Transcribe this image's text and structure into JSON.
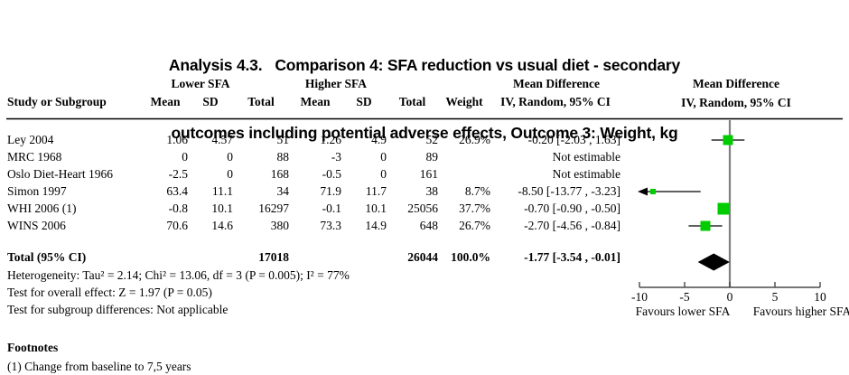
{
  "title": {
    "line1": "Analysis 4.3.   Comparison 4: SFA reduction vs usual diet - secondary",
    "line2": "outcomes including potential adverse effects, Outcome 3: Weight, kg"
  },
  "header": {
    "study": "Study or Subgroup",
    "group_lower": "Lower SFA",
    "group_higher": "Higher SFA",
    "mean": "Mean",
    "sd": "SD",
    "total": "Total",
    "weight": "Weight",
    "md_title_text": "Mean Difference",
    "md_title_graph": "Mean Difference",
    "md_subtitle_text": "IV, Random, 95% CI",
    "md_subtitle_graph": "IV, Random, 95% CI"
  },
  "rows": [
    {
      "study": "Ley 2004",
      "mean1": "1.06",
      "sd1": "4.57",
      "total1": "51",
      "mean2": "1.26",
      "sd2": "4.9",
      "total2": "52",
      "weight": "26.9%",
      "md": "-0.20 [-2.03 , 1.63]"
    },
    {
      "study": "MRC 1968",
      "mean1": "0",
      "sd1": "0",
      "total1": "88",
      "mean2": "-3",
      "sd2": "0",
      "total2": "89",
      "weight": "",
      "md": "Not estimable"
    },
    {
      "study": "Oslo Diet-Heart 1966",
      "mean1": "-2.5",
      "sd1": "0",
      "total1": "168",
      "mean2": "-0.5",
      "sd2": "0",
      "total2": "161",
      "weight": "",
      "md": "Not estimable"
    },
    {
      "study": "Simon 1997",
      "mean1": "63.4",
      "sd1": "11.1",
      "total1": "34",
      "mean2": "71.9",
      "sd2": "11.7",
      "total2": "38",
      "weight": "8.7%",
      "md": "-8.50 [-13.77 , -3.23]"
    },
    {
      "study": "WHI 2006 (1)",
      "mean1": "-0.8",
      "sd1": "10.1",
      "total1": "16297",
      "mean2": "-0.1",
      "sd2": "10.1",
      "total2": "25056",
      "weight": "37.7%",
      "md": "-0.70 [-0.90 , -0.50]"
    },
    {
      "study": "WINS 2006",
      "mean1": "70.6",
      "sd1": "14.6",
      "total1": "380",
      "mean2": "73.3",
      "sd2": "14.9",
      "total2": "648",
      "weight": "26.7%",
      "md": "-2.70 [-4.56 , -0.84]"
    }
  ],
  "total_row": {
    "label": "Total (95% CI)",
    "total1": "17018",
    "total2": "26044",
    "weight": "100.0%",
    "md": "-1.77 [-3.54 , -0.01]"
  },
  "stats": {
    "heterogeneity": "Heterogeneity: Tau² = 2.14; Chi² = 13.06, df = 3 (P = 0.005); I² = 77%",
    "overall_effect": "Test for overall effect: Z = 1.97 (P = 0.05)",
    "subgroup": "Test for subgroup differences: Not applicable"
  },
  "footnotes": {
    "heading": "Footnotes",
    "items": [
      "(1) Change from baseline to 7,5 years"
    ]
  },
  "chart_data": {
    "type": "forest",
    "effect_measure": "Mean Difference (IV, Random, 95% CI)",
    "axis": {
      "min": -10,
      "max": 10,
      "ticks": [
        -10,
        -5,
        0,
        5,
        10
      ],
      "label_left": "Favours lower SFA",
      "label_right": "Favours higher SFA"
    },
    "studies": [
      {
        "name": "Ley 2004",
        "effect": -0.2,
        "ci_low": -2.03,
        "ci_high": 1.63,
        "weight": 26.9
      },
      {
        "name": "MRC 1968",
        "effect": null,
        "ci_low": null,
        "ci_high": null,
        "weight": null
      },
      {
        "name": "Oslo Diet-Heart 1966",
        "effect": null,
        "ci_low": null,
        "ci_high": null,
        "weight": null
      },
      {
        "name": "Simon 1997",
        "effect": -8.5,
        "ci_low": -13.77,
        "ci_high": -3.23,
        "weight": 8.7
      },
      {
        "name": "WHI 2006 (1)",
        "effect": -0.7,
        "ci_low": -0.9,
        "ci_high": -0.5,
        "weight": 37.7
      },
      {
        "name": "WINS 2006",
        "effect": -2.7,
        "ci_low": -4.56,
        "ci_high": -0.84,
        "weight": 26.7
      }
    ],
    "total": {
      "effect": -1.77,
      "ci_low": -3.54,
      "ci_high": -0.01
    },
    "colors": {
      "marker_green": "#00CC00",
      "diamond_black": "#000000",
      "zero_line_gray": "#808080",
      "axis_gray": "#4a4a4a"
    }
  }
}
